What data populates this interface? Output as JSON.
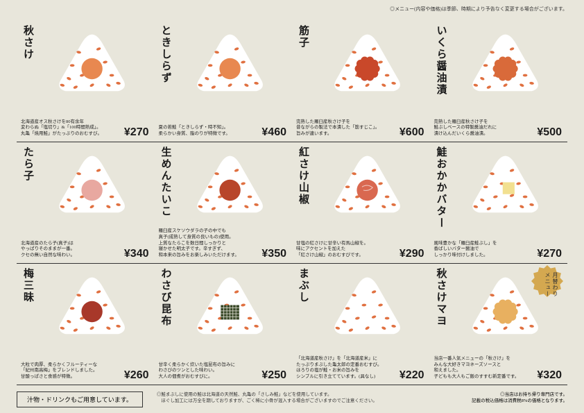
{
  "topNote": "◎メニュー(内容や価格)は季節、時期により予告なく変更する場合がございます。",
  "items": [
    {
      "title": "秋さけ",
      "price": "¥270",
      "desc": "北海道産オス秋さけを80有余年\n変わらぬ「塩切り」&「100時間熟成」。\n丸亀「焼用鮭」がたっぷりのおむすび。",
      "fill": "#e88850",
      "type": "circle"
    },
    {
      "title": "ときしらず",
      "price": "¥460",
      "desc": "夏の若鮭「ときしらず・時不知」。\n柔らかい身質、脂のりが特徴です。",
      "fill": "#e88850",
      "type": "circle"
    },
    {
      "title": "筋子",
      "price": "¥600",
      "desc": "完熟した羅臼産秋さけ子を\n昔ながらの製法で本漬した「筋すじこ」。\n旨みが違います。",
      "fill": "#c9482a",
      "type": "flower"
    },
    {
      "title": "いくら醤油漬",
      "price": "¥500",
      "desc": "完熟した羅臼産秋さけ子を\n鮭ぶしベースの特製醤油だれに\n漬け込んだいくら醤油漬。",
      "fill": "#d96a3a",
      "type": "flower"
    },
    {
      "title": "たら子",
      "price": "¥340",
      "desc": "北海道産のたら子(真子)は\nやっぱりそのままが一番。\nクセの無い自然な味わい。",
      "fill": "#e8a8a0",
      "type": "circle"
    },
    {
      "title": "生めんたいこ",
      "price": "¥350",
      "desc": "羅臼産スケソウダラの子の中でも\n真子(成熟して身質の良いもの)使用。\n上質なたらこを数日間しっかりと\n寝かせた明太子です。辛すぎず、\n和本来の旨みをお楽しみいただけます。",
      "fill": "#b8452a",
      "type": "circle"
    },
    {
      "title": "紅さけ山椒",
      "price": "¥290",
      "desc": "甘塩の紅さけに甘辛い有馬山椒を。\n味にアクセントを加えた\n「紅さけ山椒」のおむすびです。",
      "fill": "#d96850",
      "type": "swirl"
    },
    {
      "title": "鮭おかかバター",
      "price": "¥270",
      "desc": "風味豊かな「羅臼産鮭ぶし」を\n香ばしいバター醤油で\nしっかり味付けしました。",
      "fill": "#f2e090",
      "type": "square"
    },
    {
      "title": "梅三昧",
      "price": "¥260",
      "desc": "大粒で肉厚、柔らかくフルーティーな\n「紀州南高梅」をブレンドしました。\n甘酸っぱさと食感が特徴。",
      "fill": "#a8382a",
      "type": "circle"
    },
    {
      "title": "わさび昆布",
      "price": "¥250",
      "desc": "甘辛く柔らかく炊いた塩昆布の旨みに\nわさびのツンとした味わい。\n大人の佃煮がおむすびに。",
      "fill": "#3a4a2a",
      "type": "grid"
    },
    {
      "title": "まぶし",
      "price": "¥220",
      "desc": "「北海道産秋さけ」を「北海道産米」に\nたっぷりまぶした亀太郎の定番おむすび。\nほろりの塩が鮭・お米の旨みを\nシンプルに引き立てています。(具なし)",
      "fill": "none",
      "type": "none"
    },
    {
      "title": "秋さけマヨ",
      "price": "¥320",
      "desc": "当店一番人気メニューの「秋さけ」を\nみんな大好きマヨネーズソースと\n和えました。\n子どもも大人もご飯のすすむ新定番です。",
      "fill": "#e8b060",
      "type": "flower",
      "badge": true,
      "badgeText": "月替わり\nメニュー"
    }
  ],
  "footer": {
    "box": "汁物・ドリンクもご用意しています。",
    "note": "◎鮭まぶしに使用の鮭は北海道の天然鮭、丸亀の「さしみ鮭」などを使用しています。\n　ほぐし加工には万全を期しておりますが、ごく稀に小骨が混入する場合がございますのでご注意ください。",
    "right": "◎当店はお持ち帰り専門店です。\n　記載の税込価格は消費税8%の価格となります。"
  },
  "colors": {
    "riceSpots": "#e07040",
    "badgeFill": "#d4a850"
  }
}
